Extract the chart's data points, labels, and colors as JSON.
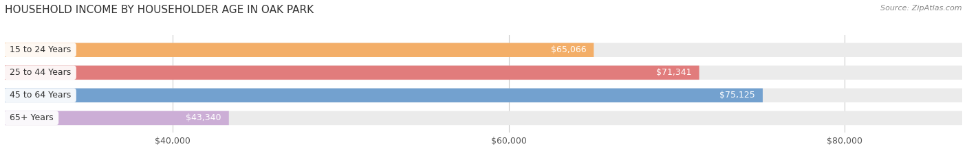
{
  "title": "HOUSEHOLD INCOME BY HOUSEHOLDER AGE IN OAK PARK",
  "source": "Source: ZipAtlas.com",
  "categories": [
    "15 to 24 Years",
    "25 to 44 Years",
    "45 to 64 Years",
    "65+ Years"
  ],
  "values": [
    65066,
    71341,
    75125,
    43340
  ],
  "labels": [
    "$65,066",
    "$71,341",
    "$75,125",
    "$43,340"
  ],
  "bar_colors": [
    "#F5A85A",
    "#E07070",
    "#6699CC",
    "#C9A8D4"
  ],
  "bar_bg_color": "#EBEBEB",
  "xmin": 30000,
  "xmax": 87000,
  "xticks": [
    40000,
    60000,
    80000
  ],
  "xticklabels": [
    "$40,000",
    "$60,000",
    "$80,000"
  ],
  "title_fontsize": 11,
  "source_fontsize": 8,
  "value_fontsize": 9,
  "category_fontsize": 9,
  "tick_fontsize": 9,
  "background_color": "#FFFFFF",
  "bar_height": 0.62,
  "label_inside_bar": true,
  "label_color": "white",
  "category_box_color": "white",
  "grid_color": "#CCCCCC",
  "grid_linewidth": 0.8
}
